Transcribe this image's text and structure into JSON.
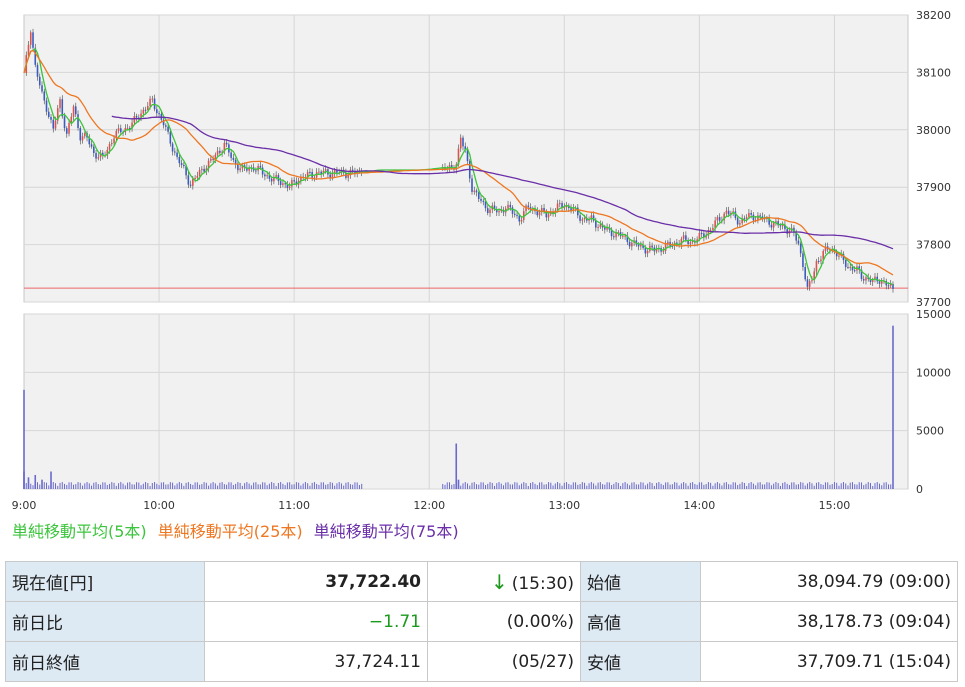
{
  "chart_data": {
    "type": "candlestick",
    "price_axis": {
      "ylim": [
        37700,
        38200
      ],
      "ticks": [
        "38200",
        "38100",
        "38000",
        "37900",
        "37800",
        "37700"
      ]
    },
    "volume_axis": {
      "ylim": [
        0,
        15000
      ],
      "ticks": [
        "15000",
        "10000",
        "5000",
        "0"
      ]
    },
    "x_ticks": [
      "9:00",
      "10:00",
      "11:00",
      "12:00",
      "13:00",
      "14:00",
      "15:00"
    ],
    "grid": true,
    "reference_line": 37724.11,
    "close_series": [
      [
        0,
        38095
      ],
      [
        3,
        38178
      ],
      [
        5,
        38110
      ],
      [
        8,
        38060
      ],
      [
        10,
        38040
      ],
      [
        13,
        38000
      ],
      [
        16,
        38050
      ],
      [
        19,
        37990
      ],
      [
        22,
        38040
      ],
      [
        25,
        37990
      ],
      [
        28,
        37985
      ],
      [
        31,
        37960
      ],
      [
        35,
        37950
      ],
      [
        40,
        37990
      ],
      [
        44,
        38000
      ],
      [
        48,
        38010
      ],
      [
        52,
        38030
      ],
      [
        57,
        38050
      ],
      [
        62,
        38010
      ],
      [
        65,
        37980
      ],
      [
        68,
        37950
      ],
      [
        71,
        37930
      ],
      [
        74,
        37905
      ],
      [
        77,
        37920
      ],
      [
        80,
        37935
      ],
      [
        83,
        37945
      ],
      [
        86,
        37960
      ],
      [
        89,
        37975
      ],
      [
        93,
        37945
      ],
      [
        97,
        37930
      ],
      [
        102,
        37935
      ],
      [
        106,
        37925
      ],
      [
        110,
        37915
      ],
      [
        114,
        37910
      ],
      [
        118,
        37900
      ],
      [
        122,
        37915
      ],
      [
        126,
        37920
      ],
      [
        130,
        37925
      ],
      [
        135,
        37925
      ],
      [
        140,
        37925
      ],
      [
        150,
        37925
      ],
      [
        155,
        37930
      ],
      [
        160,
        37930
      ],
      [
        165,
        37930
      ],
      [
        170,
        37930
      ],
      [
        175,
        37930
      ],
      [
        180,
        37932
      ],
      [
        186,
        37935
      ],
      [
        190,
        37930
      ],
      [
        192,
        37945
      ],
      [
        194,
        37985
      ],
      [
        196,
        37960
      ],
      [
        199,
        37900
      ],
      [
        202,
        37880
      ],
      [
        205,
        37865
      ],
      [
        208,
        37862
      ],
      [
        211,
        37855
      ],
      [
        214,
        37868
      ],
      [
        217,
        37855
      ],
      [
        220,
        37845
      ],
      [
        224,
        37865
      ],
      [
        228,
        37858
      ],
      [
        232,
        37852
      ],
      [
        236,
        37862
      ],
      [
        240,
        37870
      ],
      [
        244,
        37860
      ],
      [
        248,
        37845
      ],
      [
        252,
        37843
      ],
      [
        256,
        37832
      ],
      [
        260,
        37822
      ],
      [
        264,
        37818
      ],
      [
        268,
        37808
      ],
      [
        272,
        37799
      ],
      [
        276,
        37793
      ],
      [
        280,
        37790
      ],
      [
        284,
        37795
      ],
      [
        288,
        37800
      ],
      [
        292,
        37808
      ],
      [
        296,
        37805
      ],
      [
        300,
        37812
      ],
      [
        303,
        37820
      ],
      [
        306,
        37832
      ],
      [
        309,
        37845
      ],
      [
        312,
        37858
      ],
      [
        315,
        37850
      ],
      [
        318,
        37840
      ],
      [
        321,
        37848
      ],
      [
        324,
        37850
      ],
      [
        328,
        37845
      ],
      [
        332,
        37838
      ],
      [
        336,
        37832
      ],
      [
        340,
        37826
      ],
      [
        342,
        37818
      ],
      [
        344,
        37800
      ],
      [
        346,
        37768
      ],
      [
        348,
        37720
      ],
      [
        350,
        37740
      ],
      [
        352,
        37770
      ],
      [
        355,
        37785
      ],
      [
        358,
        37795
      ],
      [
        361,
        37785
      ],
      [
        364,
        37770
      ],
      [
        367,
        37760
      ],
      [
        370,
        37755
      ],
      [
        372,
        37745
      ],
      [
        374,
        37742
      ],
      [
        377,
        37735
      ],
      [
        380,
        37740
      ],
      [
        383,
        37730
      ],
      [
        386,
        37722
      ]
    ],
    "series": [
      {
        "name": "単純移動平均(5本)",
        "color": "#3cc43c",
        "window": 5
      },
      {
        "name": "単純移動平均(25本)",
        "color": "#ee7722",
        "window": 25
      },
      {
        "name": "単純移動平均(75本)",
        "color": "#6a2fa8",
        "window": 75
      }
    ],
    "volume_spikes": [
      [
        0,
        8500
      ],
      [
        0,
        1500
      ],
      [
        2,
        1000
      ],
      [
        5,
        1200
      ],
      [
        8,
        800
      ],
      [
        12,
        1500
      ],
      [
        192,
        3900
      ],
      [
        193,
        800
      ],
      [
        386,
        14000
      ]
    ]
  },
  "legend": {
    "ma5": "単純移動平均(5本)",
    "ma25": "単純移動平均(25本)",
    "ma75": "単純移動平均(75本)",
    "ma5_color": "#3cc43c",
    "ma25_color": "#ee7722",
    "ma75_color": "#6a2fa8"
  },
  "quote": {
    "current_label": "現在値[円]",
    "current_value": "37,722.40",
    "current_arrow": "↓",
    "current_time": "(15:30)",
    "open_label": "始値",
    "open_value": "38,094.79 (09:00)",
    "change_label": "前日比",
    "change_value": "−1.71",
    "change_pct": "(0.00%)",
    "high_label": "高値",
    "high_value": "38,178.73 (09:04)",
    "prev_label": "前日終値",
    "prev_value": "37,724.11",
    "prev_date": "(05/27)",
    "low_label": "安値",
    "low_value": "37,709.71 (15:04)"
  }
}
